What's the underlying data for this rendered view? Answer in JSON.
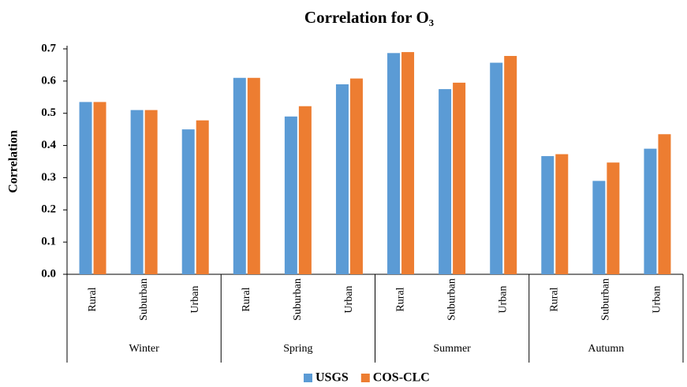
{
  "chart_data": {
    "type": "bar",
    "title": "Correlation  for O₃",
    "y_label": "Correlation",
    "categories": [
      "Rural",
      "Suburban",
      "Urban",
      "Rural",
      "Suburban",
      "Urban",
      "Rural",
      "Suburban",
      "Urban",
      "Rural",
      "Suburban",
      "Urban"
    ],
    "groups": [
      "Winter",
      "Spring",
      "Summer",
      "Autumn"
    ],
    "series": [
      {
        "name": "USGS",
        "color": "#5b9bd5",
        "values": [
          0.535,
          0.51,
          0.45,
          0.61,
          0.49,
          0.59,
          0.687,
          0.575,
          0.657,
          0.367,
          0.29,
          0.39
        ]
      },
      {
        "name": "COS-CLC",
        "color": "#ed7d31",
        "values": [
          0.535,
          0.51,
          0.478,
          0.61,
          0.522,
          0.608,
          0.69,
          0.595,
          0.678,
          0.373,
          0.347,
          0.435
        ]
      }
    ],
    "ylim": [
      0,
      0.7
    ],
    "yticks": [
      {
        "value": 0,
        "label": "0.0"
      },
      0.1,
      0.2,
      0.3,
      0.4,
      0.5,
      0.6,
      0.7
    ],
    "grid": false,
    "legend": "bottom"
  }
}
